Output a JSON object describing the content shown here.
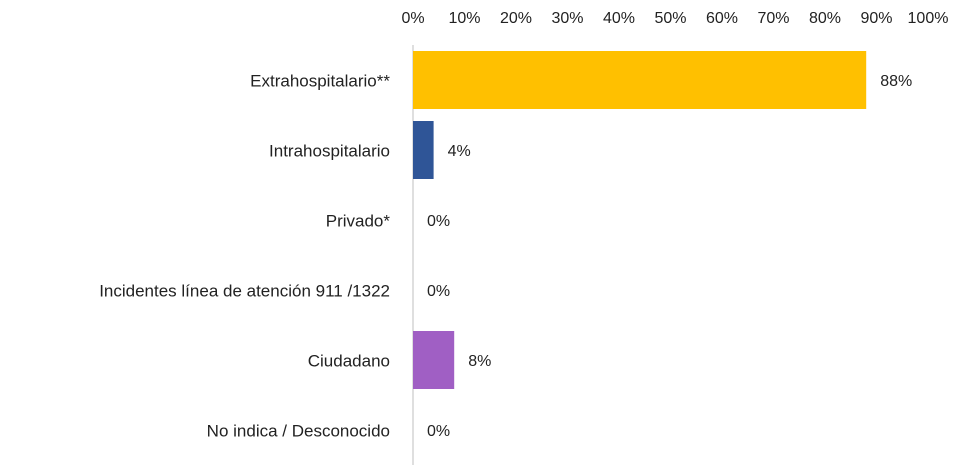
{
  "chart_data": {
    "type": "hbar",
    "categories": [
      "Extrahospitalario**",
      "Intrahospitalario",
      "Privado*",
      "Incidentes línea de atención 911 /1322",
      "Ciudadano",
      "No indica / Desconocido"
    ],
    "values": [
      88,
      4,
      0,
      0,
      8,
      0
    ],
    "value_labels": [
      "88%",
      "4%",
      "0%",
      "0%",
      "8%",
      "0%"
    ],
    "colors": [
      "#FFC000",
      "#2F5597",
      null,
      null,
      "#A05FC4",
      null
    ],
    "xlim": [
      0,
      100
    ],
    "xticks": [
      {
        "value": 0,
        "label": "0%"
      },
      {
        "value": 10,
        "label": "10%"
      },
      {
        "value": 20,
        "label": "20%"
      },
      {
        "value": 30,
        "label": "30%"
      },
      {
        "value": 40,
        "label": "40%"
      },
      {
        "value": 50,
        "label": "50%"
      },
      {
        "value": 60,
        "label": "60%"
      },
      {
        "value": 70,
        "label": "70%"
      },
      {
        "value": 80,
        "label": "80%"
      },
      {
        "value": 90,
        "label": "90%"
      },
      {
        "value": 100,
        "label": "100%"
      }
    ]
  }
}
